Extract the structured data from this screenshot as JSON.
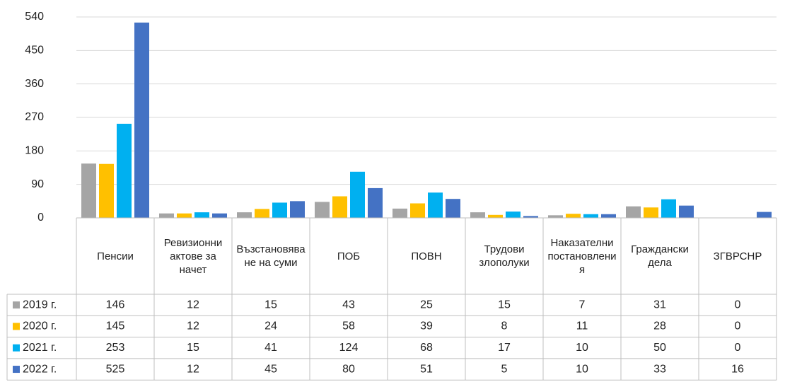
{
  "chart_data": {
    "type": "bar",
    "categories": [
      "Пенсии",
      "Ревизионни актове за начет",
      "Възстановяване на суми",
      "ПОБ",
      "ПОВН",
      "Трудови злополуки",
      "Наказателни постановления",
      "Граждански дела",
      "ЗГВРСНР"
    ],
    "series": [
      {
        "name": "2019 г.",
        "color": "#a5a5a5",
        "values": [
          146,
          12,
          15,
          43,
          25,
          15,
          7,
          31,
          0
        ]
      },
      {
        "name": "2020 г.",
        "color": "#ffc000",
        "values": [
          145,
          12,
          24,
          58,
          39,
          8,
          11,
          28,
          0
        ]
      },
      {
        "name": "2021 г.",
        "color": "#00b0f0",
        "values": [
          253,
          15,
          41,
          124,
          68,
          17,
          10,
          50,
          0
        ]
      },
      {
        "name": "2022 г.",
        "color": "#4472c4",
        "values": [
          525,
          12,
          45,
          80,
          51,
          5,
          10,
          33,
          16
        ]
      }
    ],
    "ylim": [
      0,
      540
    ],
    "yticks": [
      0,
      90,
      180,
      270,
      360,
      450,
      540
    ],
    "grid": true
  }
}
